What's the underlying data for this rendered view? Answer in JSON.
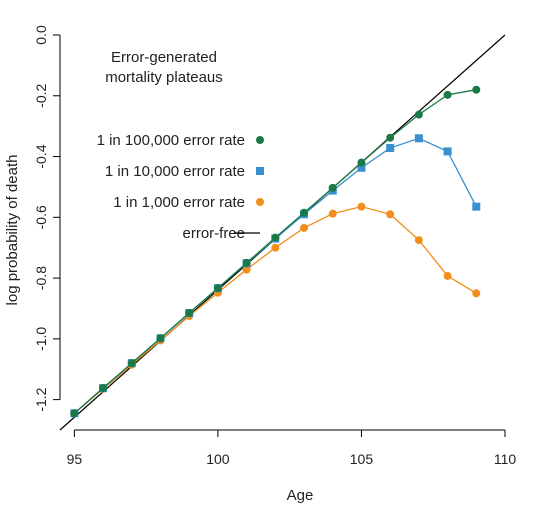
{
  "chart_data": {
    "type": "line",
    "title_lines": [
      "Error-generated",
      "mortality plateaus"
    ],
    "xlabel": "Age",
    "ylabel": "log probability of death",
    "xlim": [
      94.5,
      110
    ],
    "ylim": [
      -1.3,
      0.0
    ],
    "xticks": [
      95,
      100,
      105,
      110
    ],
    "yticks": [
      0.0,
      -0.2,
      -0.4,
      -0.6,
      -0.8,
      -1.0,
      -1.2
    ],
    "ytick_labels": [
      "0.0",
      "-0.2",
      "-0.4",
      "-0.6",
      "-0.8",
      "-1.0",
      "-1.2"
    ],
    "error_free_line": {
      "name": "error-free",
      "color": "#000000",
      "x": [
        94.5,
        110
      ],
      "y": [
        -1.3,
        0.0
      ]
    },
    "series": [
      {
        "name": "1 in 1,000 error rate",
        "color": "#f28e1c",
        "marker": "circle",
        "x": [
          95,
          96,
          97,
          98,
          99,
          100,
          101,
          102,
          103,
          104,
          105,
          106,
          107,
          108,
          109
        ],
        "y": [
          -1.245,
          -1.165,
          -1.085,
          -1.005,
          -0.925,
          -0.848,
          -0.772,
          -0.7,
          -0.635,
          -0.588,
          -0.565,
          -0.59,
          -0.675,
          -0.793,
          -0.85
        ]
      },
      {
        "name": "1 in 10,000 error rate",
        "color": "#3a8fd0",
        "marker": "square",
        "x": [
          95,
          96,
          97,
          98,
          99,
          100,
          101,
          102,
          103,
          104,
          105,
          106,
          107,
          108,
          109
        ],
        "y": [
          -1.245,
          -1.162,
          -1.08,
          -0.998,
          -0.915,
          -0.833,
          -0.751,
          -0.67,
          -0.59,
          -0.512,
          -0.437,
          -0.372,
          -0.34,
          -0.383,
          -0.565
        ]
      },
      {
        "name": "1 in 100,000 error rate",
        "color": "#1a7a45",
        "marker": "circle",
        "x": [
          95,
          96,
          97,
          98,
          99,
          100,
          101,
          102,
          103,
          104,
          105,
          106,
          107,
          108,
          109
        ],
        "y": [
          -1.245,
          -1.162,
          -1.08,
          -0.998,
          -0.915,
          -0.833,
          -0.75,
          -0.667,
          -0.585,
          -0.503,
          -0.42,
          -0.338,
          -0.262,
          -0.197,
          -0.18
        ]
      }
    ],
    "legend": [
      {
        "label": "1 in 100,000 error rate",
        "series": 2
      },
      {
        "label": "1 in 10,000 error rate",
        "series": 1
      },
      {
        "label": "1 in 1,000 error rate",
        "series": 0
      },
      {
        "label": "error-free",
        "line": true
      }
    ],
    "grid": false,
    "legend_position": "upper-left"
  }
}
